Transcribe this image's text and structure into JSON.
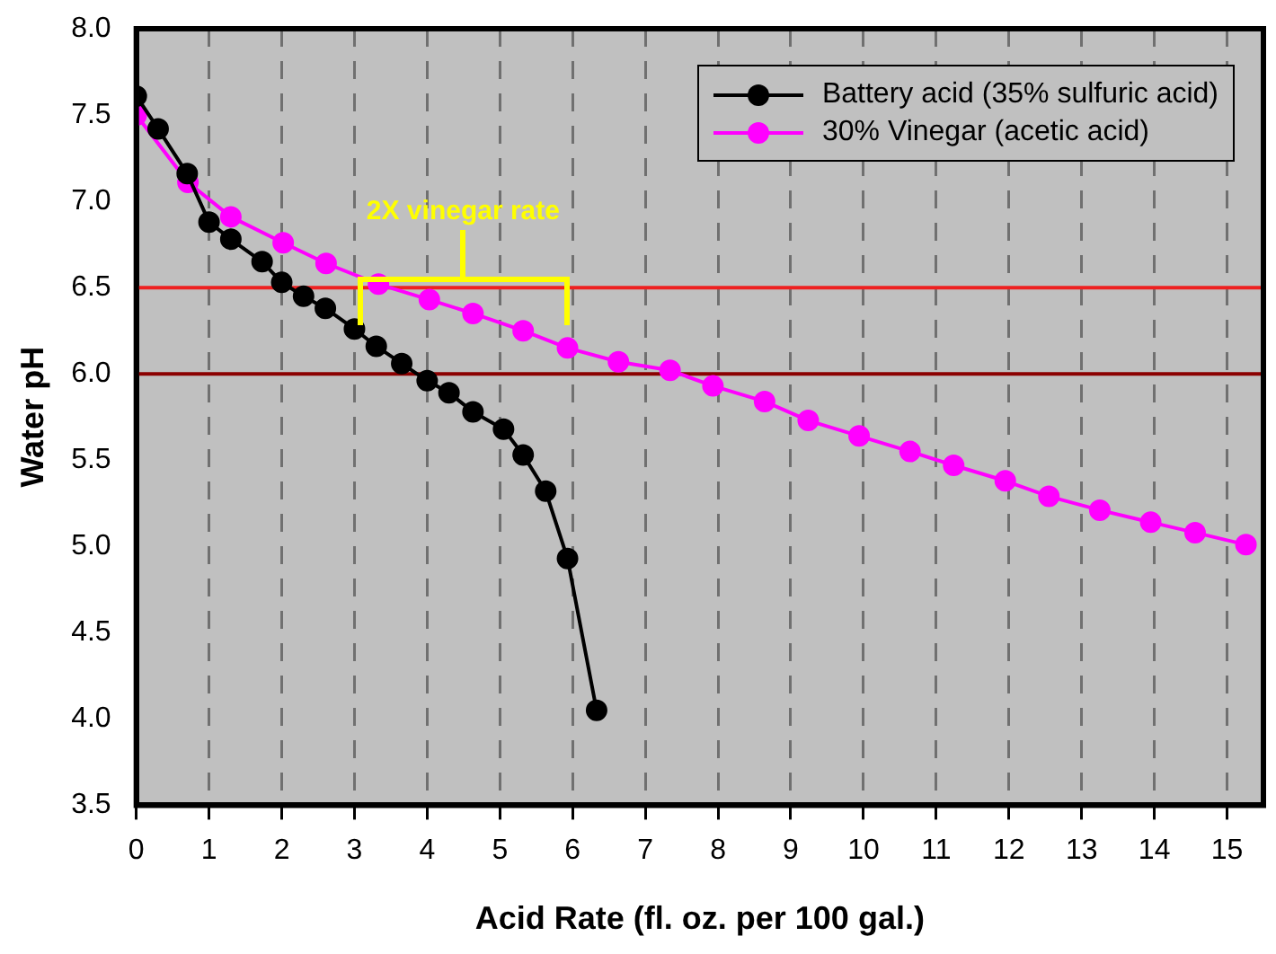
{
  "chart_data": {
    "type": "line",
    "xlabel": "Acid Rate (fl. oz. per 100 gal.)",
    "ylabel": "Water pH",
    "xlim": [
      0,
      15.5
    ],
    "xticks": [
      0,
      1,
      2,
      3,
      4,
      5,
      6,
      7,
      8,
      9,
      10,
      11,
      12,
      13,
      14,
      15
    ],
    "ylim": [
      3.5,
      8.0
    ],
    "yticks": [
      {
        "value": 3.5,
        "label": "3.5"
      },
      {
        "value": 4.0,
        "label": "4.0"
      },
      {
        "value": 4.5,
        "label": "4.5"
      },
      {
        "value": 5.0,
        "label": "5.0"
      },
      {
        "value": 5.5,
        "label": "5.5"
      },
      {
        "value": 6.0,
        "label": "6.0"
      },
      {
        "value": 6.5,
        "label": "6.5"
      },
      {
        "value": 7.0,
        "label": "7.0"
      },
      {
        "value": 7.5,
        "label": "7.5"
      },
      {
        "value": 8.0,
        "label": "8.0"
      }
    ],
    "grid": "x",
    "legend": "top right",
    "marker": "circle",
    "line_style": "solid",
    "series": [
      {
        "name": "Battery acid (35% sulfuric acid)",
        "color": "#000000",
        "x": [
          0,
          0.3,
          0.7,
          1.0,
          1.3,
          1.73,
          2.0,
          2.3,
          2.6,
          3.0,
          3.3,
          3.65,
          4.0,
          4.3,
          4.63,
          5.05,
          5.32,
          5.63,
          5.93,
          6.33
        ],
        "values": [
          7.61,
          7.42,
          7.16,
          6.88,
          6.78,
          6.65,
          6.53,
          6.45,
          6.38,
          6.26,
          6.16,
          6.06,
          5.96,
          5.89,
          5.78,
          5.68,
          5.53,
          5.32,
          4.93,
          4.05
        ]
      },
      {
        "name": "30% Vinegar (acetic acid)",
        "color": "#ff00ff",
        "x": [
          0,
          0.71,
          1.3,
          2.02,
          2.61,
          3.33,
          4.03,
          4.63,
          5.32,
          5.93,
          6.63,
          7.34,
          7.93,
          8.64,
          9.24,
          9.94,
          10.64,
          11.24,
          11.95,
          12.55,
          13.25,
          13.95,
          14.56,
          15.26
        ],
        "values": [
          7.5,
          7.11,
          6.91,
          6.76,
          6.64,
          6.52,
          6.43,
          6.35,
          6.25,
          6.15,
          6.07,
          6.02,
          5.93,
          5.84,
          5.73,
          5.64,
          5.55,
          5.47,
          5.38,
          5.29,
          5.21,
          5.14,
          5.08,
          5.01
        ]
      }
    ],
    "ref_lines": [
      {
        "axis": "y",
        "value": 6.5,
        "color": "#ee2020"
      },
      {
        "axis": "y",
        "value": 6.0,
        "color": "#8b0000"
      }
    ],
    "annotations": [
      "2X vinegar rate"
    ]
  }
}
